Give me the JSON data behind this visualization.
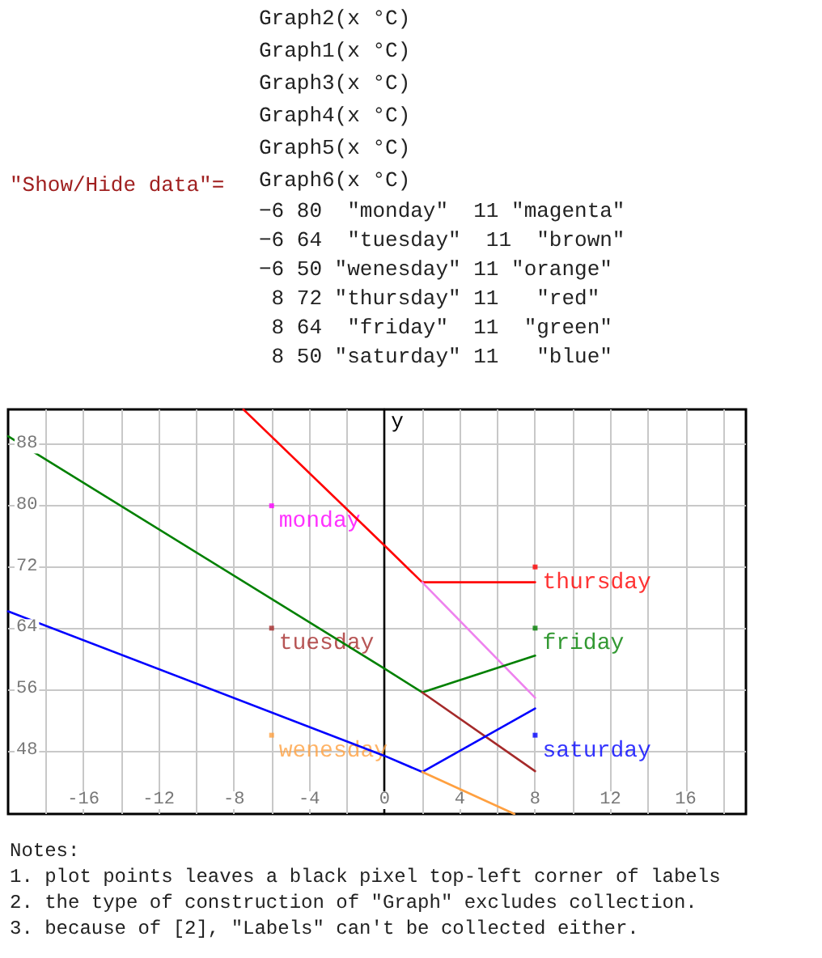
{
  "chart_data": {
    "type": "line",
    "ylabel": "y",
    "annotations": [
      "\"Show/Hide data\"=",
      "Graph2(x °C)",
      "Graph1(x °C)",
      "Graph3(x °C)",
      "Graph4(x °C)",
      "Graph5(x °C)",
      "Graph6(x °C)",
      "−6 80  \"monday\"  11 \"magenta\"",
      "−6 64  \"tuesday\"  11  \"brown\"",
      "−6 50 \"wenesday\" 11 \"orange\"",
      " 8 72 \"thursday\" 11   \"red\"",
      " 8 64  \"friday\"  11  \"green\"",
      " 8 50 \"saturday\" 11   \"blue\"",
      "Notes:",
      "1. plot points leaves a black pixel top-left corner of labels",
      "2. the type of construction of \"Graph\" excludes collection.",
      "3. because of [2], \"Labels\" can't be collected either."
    ],
    "xlim": [
      -20,
      19.2
    ],
    "ylim": [
      39.7,
      92.6
    ],
    "xticks": [
      {
        "value": -18,
        "label": null
      },
      -16,
      {
        "value": -14,
        "label": null
      },
      -12,
      {
        "value": -10,
        "label": null
      },
      -8,
      {
        "value": -6,
        "label": null
      },
      -4,
      {
        "value": -2,
        "label": null
      },
      0,
      {
        "value": 2,
        "label": null
      },
      4,
      {
        "value": 6,
        "label": null
      },
      8,
      {
        "value": 10,
        "label": null
      },
      12,
      {
        "value": 14,
        "label": null
      },
      16,
      {
        "value": 18,
        "label": null
      }
    ],
    "yticks": [
      48,
      56,
      64,
      72,
      80,
      88
    ],
    "grid": true,
    "marker": "none",
    "line_style": "solid",
    "series": [
      {
        "color": "#ff0000",
        "x": [
          -7.5,
          0,
          2,
          8
        ],
        "values": [
          92.6,
          74.8,
          70,
          70
        ]
      },
      {
        "color": "#ee82ee",
        "x": [
          2,
          8
        ],
        "values": [
          70,
          54.9
        ]
      },
      {
        "color": "#008000",
        "x": [
          -20,
          0,
          2,
          8
        ],
        "values": [
          89.1,
          58.7,
          55.6,
          60.4
        ]
      },
      {
        "color": "#a52a2a",
        "x": [
          2,
          8
        ],
        "values": [
          55.6,
          45.3
        ]
      },
      {
        "color": "#0000ff",
        "x": [
          -20,
          0,
          2,
          8
        ],
        "values": [
          66.2,
          47.3,
          45.2,
          53.5
        ]
      },
      {
        "color": "#ffa040",
        "x": [
          2,
          6.9
        ],
        "values": [
          45.2,
          39.7
        ]
      },
      {
        "type": "scatter",
        "marker": "square",
        "x": [
          -6,
          -6,
          -6,
          8,
          8,
          8
        ],
        "values": [
          80,
          64,
          50,
          72,
          64,
          50
        ],
        "colors": [
          "#ff00ff",
          "#a52a2a",
          "#ffa040",
          "#ff0000",
          "#008000",
          "#0000ff"
        ],
        "value_labels": [
          "monday",
          "tuesday",
          "wenesday",
          "thursday",
          "friday",
          "saturday"
        ]
      }
    ]
  }
}
